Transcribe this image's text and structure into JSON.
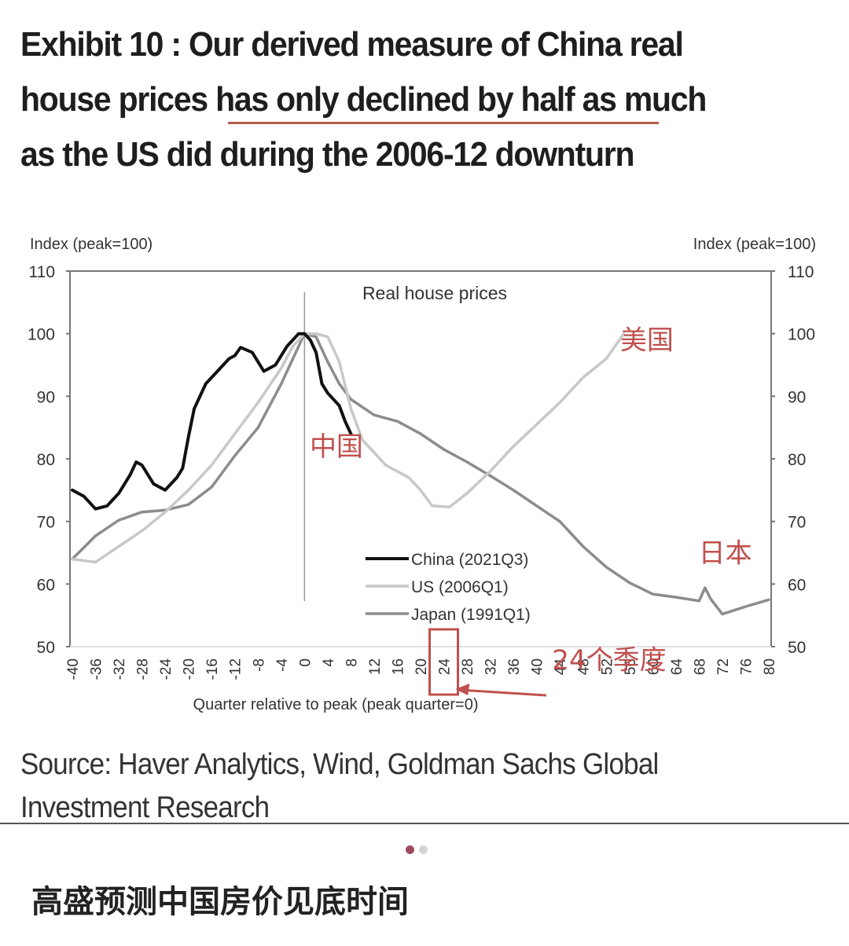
{
  "title": {
    "lines": [
      "Exhibit 10 : Our derived measure of China real",
      "house prices has only declined by half as much",
      "as the US did during the 2006-12 downturn"
    ],
    "highlight_color": "#b25e4e"
  },
  "source": {
    "lines": [
      "Source: Haver Analytics, Wind, Goldman Sachs Global",
      "Investment Research"
    ]
  },
  "carousel": {
    "total": 2,
    "active_index": 0,
    "active_color": "#9b4a5c",
    "inactive_color": "#d4d4d4"
  },
  "caption": "高盛预测中国房价见底时间",
  "chart_data": {
    "type": "line",
    "title": "Real house prices",
    "xlabel": "Quarter relative to peak (peak quarter=0)",
    "ylabel_left": "Index (peak=100)",
    "ylabel_right": "Index (peak=100)",
    "xlim": [
      -40,
      80
    ],
    "ylim": [
      50,
      110
    ],
    "x_ticks": [
      -40,
      -36,
      -32,
      -28,
      -24,
      -20,
      -16,
      -12,
      -8,
      -4,
      0,
      4,
      8,
      12,
      16,
      20,
      24,
      28,
      32,
      36,
      40,
      44,
      48,
      52,
      56,
      60,
      64,
      68,
      72,
      76,
      80
    ],
    "y_ticks": [
      50,
      60,
      70,
      80,
      90,
      100,
      110
    ],
    "grid": false,
    "peak_marker_x": 0,
    "legend": {
      "position": "bottom-center",
      "entries": [
        "China (2021Q3)",
        "US (2006Q1)",
        "Japan (1991Q1)"
      ]
    },
    "series": [
      {
        "name": "China (2021Q3)",
        "color": "#111111",
        "x": [
          -40,
          -38,
          -36,
          -34,
          -32,
          -30,
          -29,
          -28,
          -26,
          -24,
          -22,
          -21,
          -20,
          -19,
          -17,
          -15,
          -13,
          -12,
          -11,
          -9,
          -7,
          -5,
          -3,
          -1,
          0,
          1,
          2,
          3,
          4,
          5,
          6,
          7,
          8
        ],
        "y": [
          75,
          74,
          72,
          72.5,
          74.5,
          77.5,
          79.5,
          79,
          76,
          75,
          77,
          78.5,
          83.5,
          88,
          92,
          94,
          96,
          96.5,
          97.8,
          97,
          94,
          95,
          98,
          100,
          100,
          99,
          97,
          92,
          90.5,
          89.5,
          88.5,
          86,
          84
        ]
      },
      {
        "name": "US (2006Q1)",
        "color": "#c8c8c8",
        "x": [
          -40,
          -36,
          -32,
          -28,
          -24,
          -20,
          -16,
          -12,
          -8,
          -4,
          -2,
          0,
          2,
          4,
          6,
          8,
          10,
          14,
          18,
          20,
          22,
          25,
          28,
          32,
          36,
          40,
          44,
          48,
          52,
          55
        ],
        "y": [
          64,
          63.5,
          66,
          68.5,
          71.5,
          75,
          79,
          84,
          89,
          94.5,
          98,
          100,
          100,
          99.5,
          95.5,
          88,
          83,
          79,
          77,
          75,
          72.5,
          72.3,
          74.5,
          78,
          82,
          85.5,
          89,
          93,
          96,
          100
        ]
      },
      {
        "name": "Japan (1991Q1)",
        "color": "#8c8c8c",
        "x": [
          -40,
          -36,
          -32,
          -28,
          -24,
          -20,
          -16,
          -12,
          -8,
          -4,
          -2,
          0,
          2,
          4,
          6,
          8,
          12,
          16,
          20,
          24,
          28,
          32,
          36,
          40,
          44,
          48,
          52,
          56,
          60,
          64,
          68,
          69,
          70,
          72,
          76,
          80
        ],
        "y": [
          64,
          67.7,
          70.2,
          71.5,
          71.8,
          72.7,
          75.5,
          80.5,
          85,
          92,
          96,
          100,
          99.5,
          95.5,
          92,
          89.5,
          87,
          86,
          84,
          81.5,
          79.5,
          77.3,
          75,
          72.5,
          70,
          66,
          62.7,
          60.2,
          58.4,
          57.9,
          57.3,
          59.4,
          57.6,
          55.2,
          56.4,
          57.5
        ]
      }
    ],
    "annotations": [
      {
        "text": "中国",
        "x": 5.5,
        "y": 80.5,
        "color": "#c0504d"
      },
      {
        "text": "美国",
        "x": 59,
        "y": 97.5,
        "color": "#c0504d"
      },
      {
        "text": "日本",
        "x": 72.5,
        "y": 63.5,
        "color": "#c0504d"
      },
      {
        "text": "24个季度",
        "x": 52.5,
        "y": 46.4,
        "color": "#c0504d",
        "highlight_tick": 24,
        "arrow_to_x": 26
      }
    ]
  }
}
